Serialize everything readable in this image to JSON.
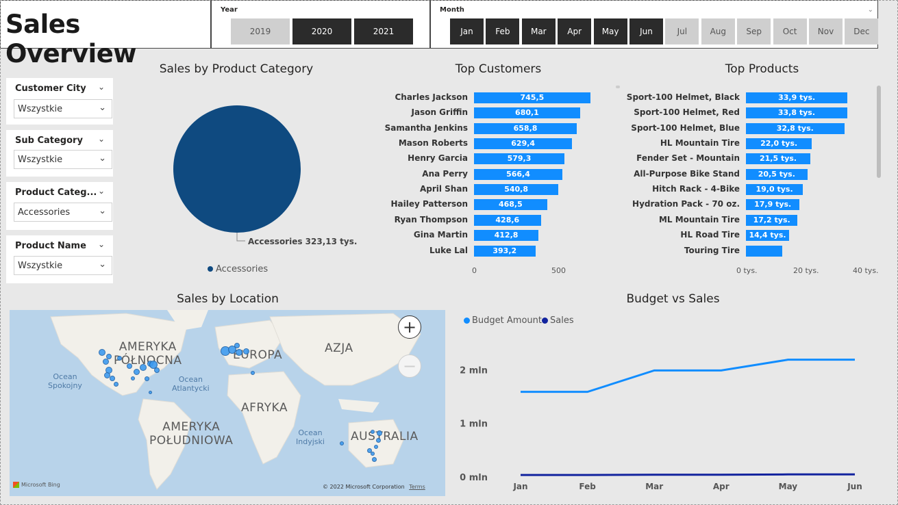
{
  "header": {
    "title": "Sales Overview"
  },
  "year_slicer": {
    "label": "Year",
    "options": [
      {
        "label": "2019",
        "selected": false
      },
      {
        "label": "2020",
        "selected": true
      },
      {
        "label": "2021",
        "selected": true
      }
    ]
  },
  "month_slicer": {
    "label": "Month",
    "options": [
      {
        "label": "Jan",
        "selected": true
      },
      {
        "label": "Feb",
        "selected": true
      },
      {
        "label": "Mar",
        "selected": true
      },
      {
        "label": "Apr",
        "selected": true
      },
      {
        "label": "May",
        "selected": true
      },
      {
        "label": "Jun",
        "selected": true
      },
      {
        "label": "Jul",
        "selected": false
      },
      {
        "label": "Aug",
        "selected": false
      },
      {
        "label": "Sep",
        "selected": false
      },
      {
        "label": "Oct",
        "selected": false
      },
      {
        "label": "Nov",
        "selected": false
      },
      {
        "label": "Dec",
        "selected": false
      }
    ]
  },
  "filters": [
    {
      "label": "Customer City",
      "value": "Wszystkie"
    },
    {
      "label": "Sub Category",
      "value": "Wszystkie"
    },
    {
      "label": "Product Categ...",
      "value": "Accessories"
    },
    {
      "label": "Product Name",
      "value": "Wszystkie"
    }
  ],
  "colors": {
    "bar": "#118dff",
    "pie": "#0f4a80",
    "budget_line": "#118dff",
    "sales_line": "#12239e",
    "selected_btn": "#2b2b2b"
  },
  "chart_data": [
    {
      "type": "pie",
      "title": "Sales by Product Category",
      "slices": [
        {
          "label": "Accessories",
          "value": 323.13,
          "display": "Accessories 323,13 tys."
        }
      ],
      "legend": [
        "Accessories"
      ]
    },
    {
      "type": "bar",
      "orientation": "horizontal",
      "title": "Top Customers",
      "categories": [
        "Charles Jackson",
        "Jason Griffin",
        "Samantha Jenkins",
        "Mason Roberts",
        "Henry Garcia",
        "Ana Perry",
        "April Shan",
        "Hailey Patterson",
        "Ryan Thompson",
        "Gina Martin",
        "Luke Lal"
      ],
      "values": [
        745.5,
        680.1,
        658.8,
        629.4,
        579.3,
        566.4,
        540.8,
        468.5,
        428.6,
        412.8,
        393.2
      ],
      "value_labels": [
        "745,5",
        "680,1",
        "658,8",
        "629,4",
        "579,3",
        "566,4",
        "540,8",
        "468,5",
        "428,6",
        "412,8",
        "393,2"
      ],
      "xlim": [
        0,
        900
      ],
      "xticks": [
        "0",
        "500"
      ]
    },
    {
      "type": "bar",
      "orientation": "horizontal",
      "title": "Top Products",
      "categories": [
        "Sport-100 Helmet, Black",
        "Sport-100 Helmet, Red",
        "Sport-100 Helmet, Blue",
        "HL Mountain Tire",
        "Fender Set - Mountain",
        "All-Purpose Bike Stand",
        "Hitch Rack - 4-Bike",
        "Hydration Pack - 70 oz.",
        "ML Mountain Tire",
        "HL Road Tire",
        "Touring Tire"
      ],
      "values": [
        33.9,
        33.8,
        32.8,
        22.0,
        21.5,
        20.5,
        19.0,
        17.9,
        17.2,
        14.4,
        12.0
      ],
      "value_labels": [
        "33,9 tys.",
        "33,8 tys.",
        "32,8 tys.",
        "22,0 tys.",
        "21,5 tys.",
        "20,5 tys.",
        "19,0 tys.",
        "17,9 tys.",
        "17,2 tys.",
        "14,4 tys.",
        ""
      ],
      "xlim": [
        0,
        40
      ],
      "xticks": [
        "0 tys.",
        "20 tys.",
        "40 tys."
      ]
    },
    {
      "type": "line",
      "title": "Budget vs Sales",
      "categories": [
        "Jan",
        "Feb",
        "Mar",
        "Apr",
        "May",
        "Jun"
      ],
      "series": [
        {
          "name": "Budget Amount",
          "values": [
            1.6,
            1.6,
            2.0,
            2.0,
            2.2,
            2.2
          ]
        },
        {
          "name": "Sales",
          "values": [
            0.05,
            0.05,
            0.055,
            0.055,
            0.06,
            0.06
          ]
        }
      ],
      "ylim": [
        0,
        2.4
      ],
      "yticks": [
        "0 mln",
        "1 mln",
        "2 mln"
      ]
    }
  ],
  "map": {
    "title": "Sales by Location",
    "regions": [
      "AMERYKA PÓŁNOCNA",
      "EUROPA",
      "AZJA",
      "AFRYKA",
      "AMERYKA POŁUDNIOWA",
      "AUSTRALIA"
    ],
    "region_lines": {
      "north_america": [
        "AMERYKA",
        "PÓŁNOCNA"
      ],
      "south_america": [
        "AMERYKA",
        "POŁUDNIOWA"
      ]
    },
    "oceans": {
      "pacific": [
        "Ocean",
        "Spokojny"
      ],
      "atlantic": [
        "Ocean",
        "Atlantycki"
      ],
      "indian": [
        "Ocean",
        "Indyjski"
      ]
    },
    "zoom_in": "+",
    "zoom_out": "−",
    "bing": "Microsoft Bing",
    "copyright": "© 2022 Microsoft Corporation",
    "terms": "Terms"
  }
}
